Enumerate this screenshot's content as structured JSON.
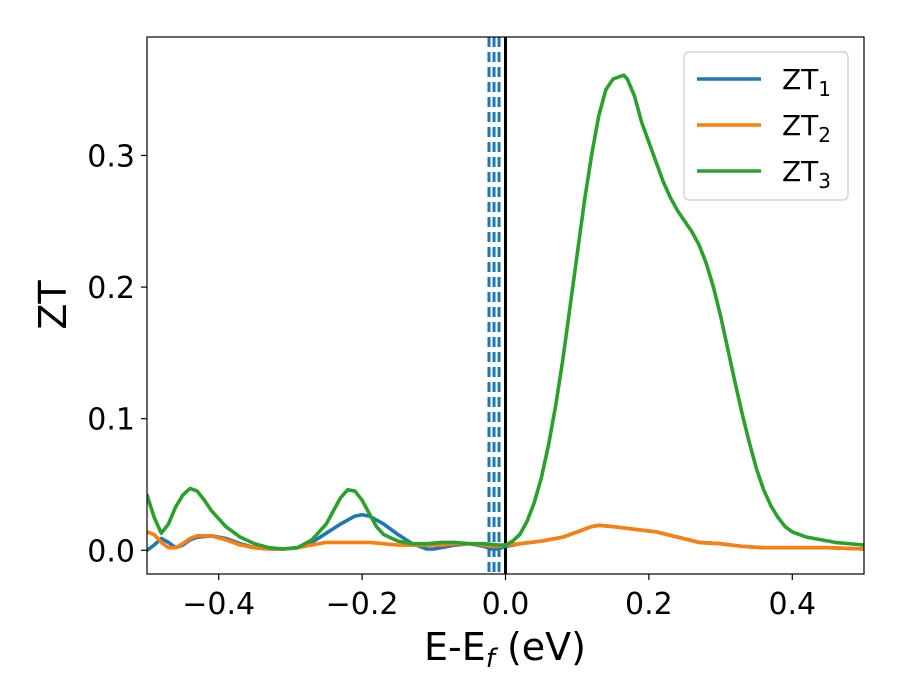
{
  "chart_data": {
    "type": "line",
    "xlabel": "E-E",
    "xlabel_sub": "f",
    "xlabel_unit": " (eV)",
    "ylabel": "ZT",
    "xlim": [
      -0.5,
      0.5
    ],
    "ylim": [
      -0.018,
      0.39
    ],
    "xticks": [
      -0.4,
      -0.2,
      0.0,
      0.2,
      0.4
    ],
    "xtick_labels": [
      "−0.4",
      "−0.2",
      "0.0",
      "0.2",
      "0.4"
    ],
    "yticks": [
      0.0,
      0.1,
      0.2,
      0.3
    ],
    "ytick_labels": [
      "0.0",
      "0.1",
      "0.2",
      "0.3"
    ],
    "grid": false,
    "legend_position": "top-right",
    "vertical_lines": [
      {
        "x": -0.023,
        "style": "dashed",
        "color": "#1f77b4"
      },
      {
        "x": -0.016,
        "style": "dashed",
        "color": "#1f77b4"
      },
      {
        "x": -0.009,
        "style": "dashed",
        "color": "#1f77b4"
      },
      {
        "x": 0.0,
        "style": "solid",
        "color": "#000000"
      }
    ],
    "series": [
      {
        "name": "ZT",
        "sub": "1",
        "color": "#1f77b4",
        "x": [
          -0.5,
          -0.49,
          -0.48,
          -0.47,
          -0.46,
          -0.45,
          -0.44,
          -0.43,
          -0.41,
          -0.39,
          -0.37,
          -0.35,
          -0.33,
          -0.31,
          -0.29,
          -0.27,
          -0.25,
          -0.23,
          -0.21,
          -0.2,
          -0.19,
          -0.17,
          -0.15,
          -0.13,
          -0.11,
          -0.1,
          -0.09,
          -0.07,
          -0.05,
          -0.03,
          -0.02,
          -0.01,
          0.0,
          0.02,
          0.05,
          0.08,
          0.1,
          0.12,
          0.13,
          0.15,
          0.18,
          0.21,
          0.24,
          0.27,
          0.3,
          0.33,
          0.36,
          0.4,
          0.45,
          0.5
        ],
        "y": [
          0.0,
          0.004,
          0.009,
          0.006,
          0.002,
          0.004,
          0.008,
          0.01,
          0.011,
          0.009,
          0.005,
          0.002,
          0.001,
          0.001,
          0.002,
          0.006,
          0.013,
          0.02,
          0.026,
          0.027,
          0.026,
          0.02,
          0.012,
          0.005,
          0.001,
          0.001,
          0.002,
          0.004,
          0.005,
          0.003,
          0.001,
          0.001,
          0.003,
          0.005,
          0.007,
          0.01,
          0.014,
          0.018,
          0.019,
          0.018,
          0.016,
          0.014,
          0.01,
          0.006,
          0.005,
          0.003,
          0.002,
          0.002,
          0.002,
          0.001
        ]
      },
      {
        "name": "ZT",
        "sub": "2",
        "color": "#ff7f0e",
        "x": [
          -0.5,
          -0.49,
          -0.48,
          -0.47,
          -0.46,
          -0.45,
          -0.44,
          -0.43,
          -0.41,
          -0.39,
          -0.37,
          -0.35,
          -0.33,
          -0.31,
          -0.29,
          -0.27,
          -0.25,
          -0.23,
          -0.21,
          -0.2,
          -0.19,
          -0.17,
          -0.15,
          -0.13,
          -0.11,
          -0.1,
          -0.09,
          -0.07,
          -0.05,
          -0.03,
          -0.02,
          -0.01,
          0.0,
          0.02,
          0.05,
          0.08,
          0.1,
          0.12,
          0.13,
          0.15,
          0.18,
          0.21,
          0.24,
          0.27,
          0.3,
          0.33,
          0.36,
          0.4,
          0.45,
          0.5
        ],
        "y": [
          0.014,
          0.012,
          0.006,
          0.002,
          0.002,
          0.005,
          0.009,
          0.011,
          0.011,
          0.008,
          0.004,
          0.002,
          0.001,
          0.001,
          0.002,
          0.004,
          0.006,
          0.006,
          0.006,
          0.006,
          0.006,
          0.005,
          0.004,
          0.004,
          0.004,
          0.004,
          0.004,
          0.005,
          0.005,
          0.004,
          0.003,
          0.003,
          0.004,
          0.005,
          0.007,
          0.01,
          0.014,
          0.018,
          0.019,
          0.018,
          0.016,
          0.014,
          0.01,
          0.006,
          0.005,
          0.003,
          0.002,
          0.002,
          0.002,
          0.001
        ]
      },
      {
        "name": "ZT",
        "sub": "3",
        "color": "#2ca02c",
        "x": [
          -0.5,
          -0.49,
          -0.48,
          -0.47,
          -0.46,
          -0.45,
          -0.44,
          -0.43,
          -0.42,
          -0.41,
          -0.39,
          -0.37,
          -0.35,
          -0.33,
          -0.31,
          -0.29,
          -0.27,
          -0.25,
          -0.24,
          -0.23,
          -0.22,
          -0.21,
          -0.2,
          -0.19,
          -0.18,
          -0.17,
          -0.15,
          -0.13,
          -0.11,
          -0.09,
          -0.07,
          -0.05,
          -0.03,
          -0.01,
          0.0,
          0.01,
          0.02,
          0.03,
          0.04,
          0.05,
          0.06,
          0.07,
          0.08,
          0.09,
          0.1,
          0.11,
          0.12,
          0.13,
          0.14,
          0.15,
          0.16,
          0.165,
          0.17,
          0.18,
          0.19,
          0.2,
          0.21,
          0.22,
          0.23,
          0.24,
          0.25,
          0.26,
          0.27,
          0.28,
          0.29,
          0.3,
          0.31,
          0.32,
          0.33,
          0.34,
          0.35,
          0.36,
          0.37,
          0.38,
          0.39,
          0.4,
          0.42,
          0.44,
          0.46,
          0.48,
          0.5
        ],
        "y": [
          0.042,
          0.025,
          0.013,
          0.02,
          0.033,
          0.042,
          0.047,
          0.045,
          0.038,
          0.03,
          0.018,
          0.01,
          0.005,
          0.002,
          0.001,
          0.002,
          0.008,
          0.02,
          0.03,
          0.04,
          0.046,
          0.045,
          0.038,
          0.028,
          0.018,
          0.012,
          0.007,
          0.005,
          0.005,
          0.006,
          0.006,
          0.005,
          0.005,
          0.004,
          0.004,
          0.007,
          0.012,
          0.022,
          0.036,
          0.055,
          0.08,
          0.11,
          0.145,
          0.185,
          0.225,
          0.265,
          0.3,
          0.33,
          0.35,
          0.358,
          0.36,
          0.361,
          0.358,
          0.345,
          0.325,
          0.31,
          0.295,
          0.28,
          0.268,
          0.258,
          0.25,
          0.242,
          0.232,
          0.218,
          0.2,
          0.178,
          0.153,
          0.128,
          0.104,
          0.082,
          0.062,
          0.046,
          0.034,
          0.025,
          0.018,
          0.014,
          0.01,
          0.008,
          0.006,
          0.005,
          0.004
        ]
      }
    ]
  }
}
